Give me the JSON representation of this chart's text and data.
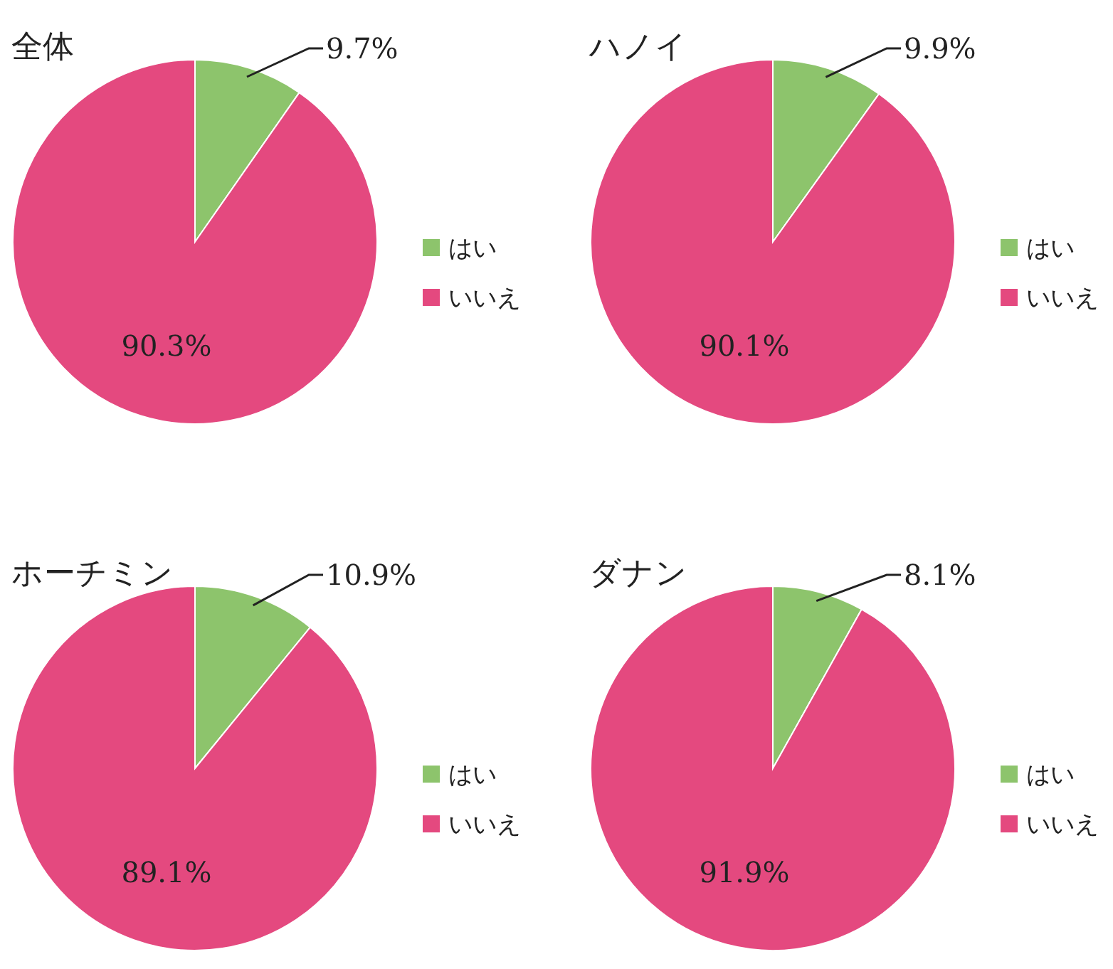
{
  "chart_data": [
    {
      "type": "pie",
      "title": "全体",
      "categories": [
        "はい",
        "いいえ"
      ],
      "values": [
        9.7,
        90.3
      ],
      "colors": [
        "#8dc46c",
        "#e4497f"
      ],
      "value_labels": [
        "9.7%",
        "90.3%"
      ],
      "legend": "right"
    },
    {
      "type": "pie",
      "title": "ハノイ",
      "categories": [
        "はい",
        "いいえ"
      ],
      "values": [
        9.9,
        90.1
      ],
      "colors": [
        "#8dc46c",
        "#e4497f"
      ],
      "value_labels": [
        "9.9%",
        "90.1%"
      ],
      "legend": "right"
    },
    {
      "type": "pie",
      "title": "ホーチミン",
      "categories": [
        "はい",
        "いいえ"
      ],
      "values": [
        10.9,
        89.1
      ],
      "colors": [
        "#8dc46c",
        "#e4497f"
      ],
      "value_labels": [
        "10.9%",
        "89.1%"
      ],
      "legend": "right"
    },
    {
      "type": "pie",
      "title": "ダナン",
      "categories": [
        "はい",
        "いいえ"
      ],
      "values": [
        8.1,
        91.9
      ],
      "colors": [
        "#8dc46c",
        "#e4497f"
      ],
      "value_labels": [
        "8.1%",
        "91.9%"
      ],
      "legend": "right"
    }
  ]
}
